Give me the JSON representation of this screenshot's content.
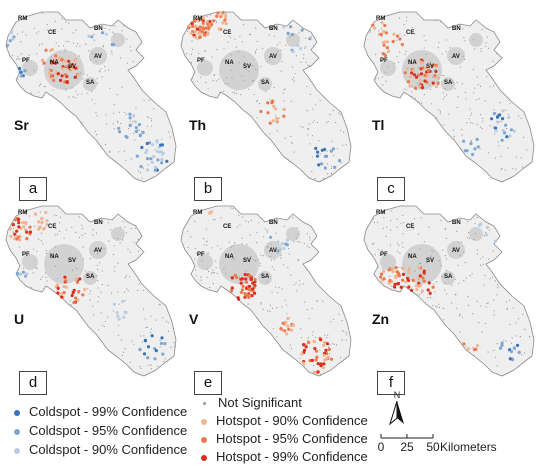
{
  "panels": [
    {
      "letter": "a",
      "element": "Sr"
    },
    {
      "letter": "b",
      "element": "Th"
    },
    {
      "letter": "c",
      "element": "Tl"
    },
    {
      "letter": "d",
      "element": "U"
    },
    {
      "letter": "e",
      "element": "V"
    },
    {
      "letter": "f",
      "element": "Zn"
    }
  ],
  "place_labels": [
    "RM",
    "CE",
    "BN",
    "AV",
    "PF",
    "NA",
    "SV",
    "SA"
  ],
  "legend": {
    "items": [
      {
        "label": "Coldspot - 99% Confidence",
        "color": "#3a74b8"
      },
      {
        "label": "Coldspot - 95% Confidence",
        "color": "#7ea6d2"
      },
      {
        "label": "Coldspot - 90% Confidence",
        "color": "#b9cde4"
      },
      {
        "label": "Not Significant",
        "color": "#9a9a9a"
      },
      {
        "label": "Hotspot - 90% Confidence",
        "color": "#f2b48e"
      },
      {
        "label": "Hotspot - 95% Confidence",
        "color": "#ea7a4e"
      },
      {
        "label": "Hotspot - 99% Confidence",
        "color": "#d7301f"
      }
    ]
  },
  "north_label": "N",
  "scale": {
    "ticks": [
      "0",
      "25",
      "50"
    ],
    "unit": "Kilometers"
  }
}
